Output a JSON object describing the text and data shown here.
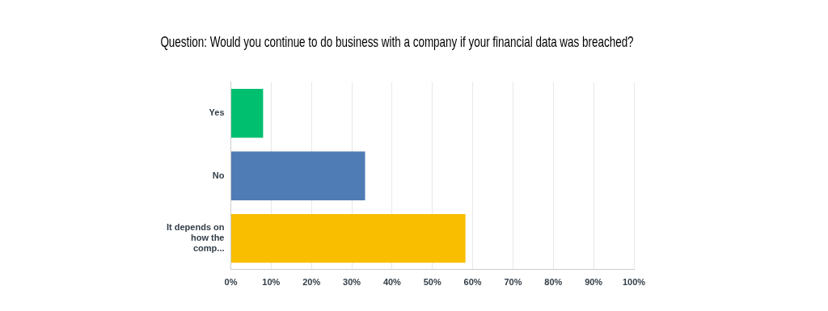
{
  "chart_data": {
    "type": "bar",
    "orientation": "horizontal",
    "title": "Question: Would you continue to do business with a company if your financial data was breached?",
    "categories": [
      "Yes",
      "No",
      "It depends on how the comp..."
    ],
    "values": [
      8.0,
      33.3,
      58.2
    ],
    "colors": [
      "#00bf6f",
      "#507cb6",
      "#f9be00"
    ],
    "xlim": [
      0,
      100
    ],
    "xticks": [
      {
        "value": 0,
        "label": "0%"
      },
      {
        "value": 10,
        "label": "10%"
      },
      {
        "value": 20,
        "label": "20%"
      },
      {
        "value": 30,
        "label": "30%"
      },
      {
        "value": 40,
        "label": "40%"
      },
      {
        "value": 50,
        "label": "50%"
      },
      {
        "value": 60,
        "label": "60%"
      },
      {
        "value": 70,
        "label": "70%"
      },
      {
        "value": 80,
        "label": "80%"
      },
      {
        "value": 90,
        "label": "90%"
      },
      {
        "value": 100,
        "label": "100%"
      }
    ],
    "grid": "x",
    "legend": false
  }
}
